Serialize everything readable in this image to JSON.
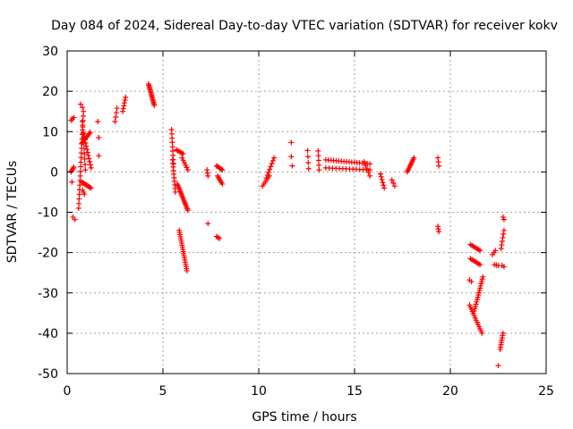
{
  "chart_data": {
    "type": "scatter",
    "title": "Day 084 of 2024, Sidereal Day-to-day VTEC variation (SDTVAR) for receiver kokv",
    "xlabel": "GPS time / hours",
    "ylabel": "SDTVAR / TECUs",
    "xlim": [
      0,
      25
    ],
    "ylim": [
      -50,
      30
    ],
    "xticks": [
      0,
      5,
      10,
      15,
      20,
      25
    ],
    "yticks": [
      -50,
      -40,
      -30,
      -20,
      -10,
      0,
      10,
      20,
      30
    ],
    "grid": true,
    "marker": "+",
    "color": "#ff0000",
    "segments": [
      {
        "x0": 0.2,
        "y0": 0.0,
        "x1": 0.35,
        "y1": 1.2,
        "n": 5
      },
      {
        "x0": 0.2,
        "y0": 12.8,
        "x1": 0.35,
        "y1": 13.5,
        "n": 3
      },
      {
        "x0": 0.3,
        "y0": -11.2,
        "x1": 0.4,
        "y1": -11.8,
        "n": 2
      },
      {
        "x0": 0.25,
        "y0": -2.5,
        "x1": 0.3,
        "y1": -2.5,
        "n": 1
      },
      {
        "x0": 0.6,
        "y0": -9.0,
        "x1": 0.85,
        "y1": 15.0,
        "n": 22
      },
      {
        "x0": 0.7,
        "y0": 16.8,
        "x1": 0.8,
        "y1": 16.0,
        "n": 2
      },
      {
        "x0": 0.8,
        "y0": 12.5,
        "x1": 0.95,
        "y1": 0.5,
        "n": 10
      },
      {
        "x0": 0.85,
        "y0": 9.5,
        "x1": 1.25,
        "y1": 1.0,
        "n": 12
      },
      {
        "x0": 0.75,
        "y0": 7.0,
        "x1": 1.2,
        "y1": 9.8,
        "n": 10
      },
      {
        "x0": 0.75,
        "y0": -2.5,
        "x1": 1.25,
        "y1": -4.0,
        "n": 10
      },
      {
        "x0": 0.8,
        "y0": -4.5,
        "x1": 0.9,
        "y1": -5.5,
        "n": 3
      },
      {
        "x0": 1.6,
        "y0": 12.5,
        "x1": 1.65,
        "y1": 12.5,
        "n": 1
      },
      {
        "x0": 1.65,
        "y0": 8.5,
        "x1": 1.7,
        "y1": 8.5,
        "n": 1
      },
      {
        "x0": 1.65,
        "y0": 4.0,
        "x1": 1.7,
        "y1": 4.0,
        "n": 1
      },
      {
        "x0": 2.5,
        "y0": 12.5,
        "x1": 2.6,
        "y1": 15.8,
        "n": 4
      },
      {
        "x0": 2.9,
        "y0": 15.0,
        "x1": 3.05,
        "y1": 18.5,
        "n": 6
      },
      {
        "x0": 4.25,
        "y0": 21.8,
        "x1": 4.55,
        "y1": 16.5,
        "n": 16
      },
      {
        "x0": 5.45,
        "y0": 10.5,
        "x1": 5.55,
        "y1": 2.0,
        "n": 9
      },
      {
        "x0": 5.5,
        "y0": 3.0,
        "x1": 5.65,
        "y1": -5.0,
        "n": 10
      },
      {
        "x0": 5.7,
        "y0": 5.5,
        "x1": 6.05,
        "y1": 4.5,
        "n": 6
      },
      {
        "x0": 5.75,
        "y0": -3.0,
        "x1": 6.3,
        "y1": -9.5,
        "n": 18
      },
      {
        "x0": 5.85,
        "y0": -14.5,
        "x1": 6.25,
        "y1": -24.5,
        "n": 20
      },
      {
        "x0": 6.0,
        "y0": 3.5,
        "x1": 6.3,
        "y1": 0.5,
        "n": 6
      },
      {
        "x0": 7.3,
        "y0": 0.5,
        "x1": 7.35,
        "y1": -1.0,
        "n": 3
      },
      {
        "x0": 7.35,
        "y0": -12.8,
        "x1": 7.4,
        "y1": -12.8,
        "n": 1
      },
      {
        "x0": 7.8,
        "y0": -16.0,
        "x1": 7.95,
        "y1": -16.5,
        "n": 3
      },
      {
        "x0": 7.8,
        "y0": 1.5,
        "x1": 8.1,
        "y1": 0.5,
        "n": 6
      },
      {
        "x0": 7.85,
        "y0": -1.0,
        "x1": 8.1,
        "y1": -3.0,
        "n": 6
      },
      {
        "x0": 10.2,
        "y0": -3.5,
        "x1": 10.55,
        "y1": -1.0,
        "n": 6
      },
      {
        "x0": 10.4,
        "y0": -1.5,
        "x1": 10.8,
        "y1": 3.5,
        "n": 8
      },
      {
        "x0": 11.7,
        "y0": 7.3,
        "x1": 11.75,
        "y1": 7.3,
        "n": 1
      },
      {
        "x0": 11.7,
        "y0": 3.8,
        "x1": 11.75,
        "y1": 1.5,
        "n": 2
      },
      {
        "x0": 12.55,
        "y0": 5.3,
        "x1": 12.6,
        "y1": 0.8,
        "n": 4
      },
      {
        "x0": 13.1,
        "y0": 5.2,
        "x1": 13.15,
        "y1": 0.5,
        "n": 5
      },
      {
        "x0": 13.5,
        "y0": 3.0,
        "x1": 15.8,
        "y1": 2.0,
        "n": 18
      },
      {
        "x0": 13.5,
        "y0": 1.0,
        "x1": 15.8,
        "y1": 0.5,
        "n": 14
      },
      {
        "x0": 15.5,
        "y0": 2.5,
        "x1": 15.8,
        "y1": -1.0,
        "n": 5
      },
      {
        "x0": 16.35,
        "y0": -0.5,
        "x1": 16.55,
        "y1": -4.0,
        "n": 6
      },
      {
        "x0": 16.95,
        "y0": -2.0,
        "x1": 17.1,
        "y1": -3.5,
        "n": 3
      },
      {
        "x0": 17.75,
        "y0": 0.0,
        "x1": 18.1,
        "y1": 3.5,
        "n": 10
      },
      {
        "x0": 19.35,
        "y0": 3.5,
        "x1": 19.4,
        "y1": 1.5,
        "n": 3
      },
      {
        "x0": 19.35,
        "y0": -13.5,
        "x1": 19.4,
        "y1": -14.8,
        "n": 3
      },
      {
        "x0": 21.05,
        "y0": -18.0,
        "x1": 21.55,
        "y1": -19.5,
        "n": 8
      },
      {
        "x0": 21.05,
        "y0": -21.5,
        "x1": 21.55,
        "y1": -23.0,
        "n": 8
      },
      {
        "x0": 21.0,
        "y0": -26.8,
        "x1": 21.1,
        "y1": -27.2,
        "n": 2
      },
      {
        "x0": 21.0,
        "y0": -33.0,
        "x1": 21.65,
        "y1": -40.0,
        "n": 14
      },
      {
        "x0": 21.25,
        "y0": -34.5,
        "x1": 21.7,
        "y1": -26.0,
        "n": 16
      },
      {
        "x0": 22.2,
        "y0": -20.5,
        "x1": 22.35,
        "y1": -19.5,
        "n": 3
      },
      {
        "x0": 22.3,
        "y0": -23.0,
        "x1": 22.5,
        "y1": -23.2,
        "n": 3
      },
      {
        "x0": 22.7,
        "y0": -23.2,
        "x1": 22.8,
        "y1": -23.5,
        "n": 2
      },
      {
        "x0": 22.65,
        "y0": -19.0,
        "x1": 22.8,
        "y1": -14.5,
        "n": 6
      },
      {
        "x0": 22.75,
        "y0": -11.2,
        "x1": 22.8,
        "y1": -11.8,
        "n": 2
      },
      {
        "x0": 22.6,
        "y0": -44.0,
        "x1": 22.75,
        "y1": -40.0,
        "n": 8
      },
      {
        "x0": 22.5,
        "y0": -48.0,
        "x1": 22.55,
        "y1": -48.0,
        "n": 1
      }
    ]
  }
}
